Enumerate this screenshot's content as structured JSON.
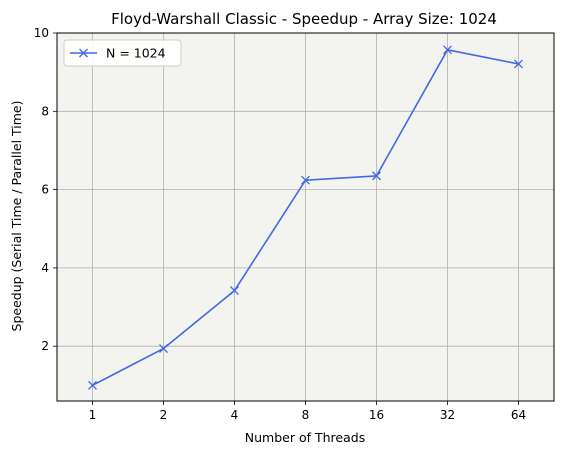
{
  "chart_data": {
    "type": "line",
    "title": "Floyd-Warshall Classic - Speedup -  Array Size: 1024",
    "xlabel": "Number of Threads",
    "ylabel": "Speedup (Serial Time / Parallel Time)",
    "categories": [
      "1",
      "2",
      "4",
      "8",
      "16",
      "32",
      "64"
    ],
    "series": [
      {
        "name": "N = 1024",
        "values": [
          1.0,
          1.94,
          3.42,
          6.24,
          6.35,
          9.57,
          9.21
        ],
        "color": "#4169e1",
        "marker": "x"
      }
    ],
    "ylim": [
      0.6,
      10
    ],
    "yticks": [
      2,
      4,
      6,
      8,
      10
    ],
    "grid": true,
    "legend_position": "top-left",
    "plot_background": "#f3f4f0",
    "grid_color": "#b0b0b0"
  }
}
